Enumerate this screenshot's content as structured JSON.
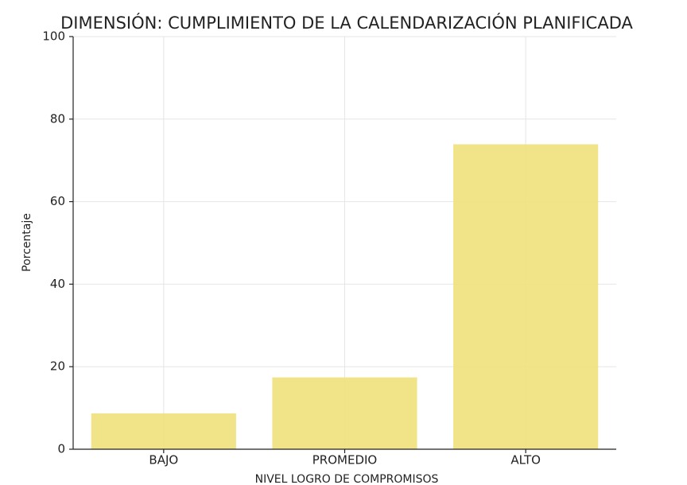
{
  "chart_data": {
    "type": "bar",
    "title": "DIMENSIÓN: CUMPLIMIENTO DE LA CALENDARIZACIÓN PLANIFICADA",
    "x_label": "NIVEL LOGRO DE COMPROMISOS",
    "y_label": "Porcentaje",
    "categories": [
      "BAJO",
      "PROMEDIO",
      "ALTO"
    ],
    "values": [
      8.7,
      17.4,
      73.9
    ],
    "color": "#f0e07a",
    "ylim": [
      0,
      100
    ],
    "yticks": [
      0,
      20,
      40,
      60,
      80,
      100
    ],
    "grid": true
  }
}
